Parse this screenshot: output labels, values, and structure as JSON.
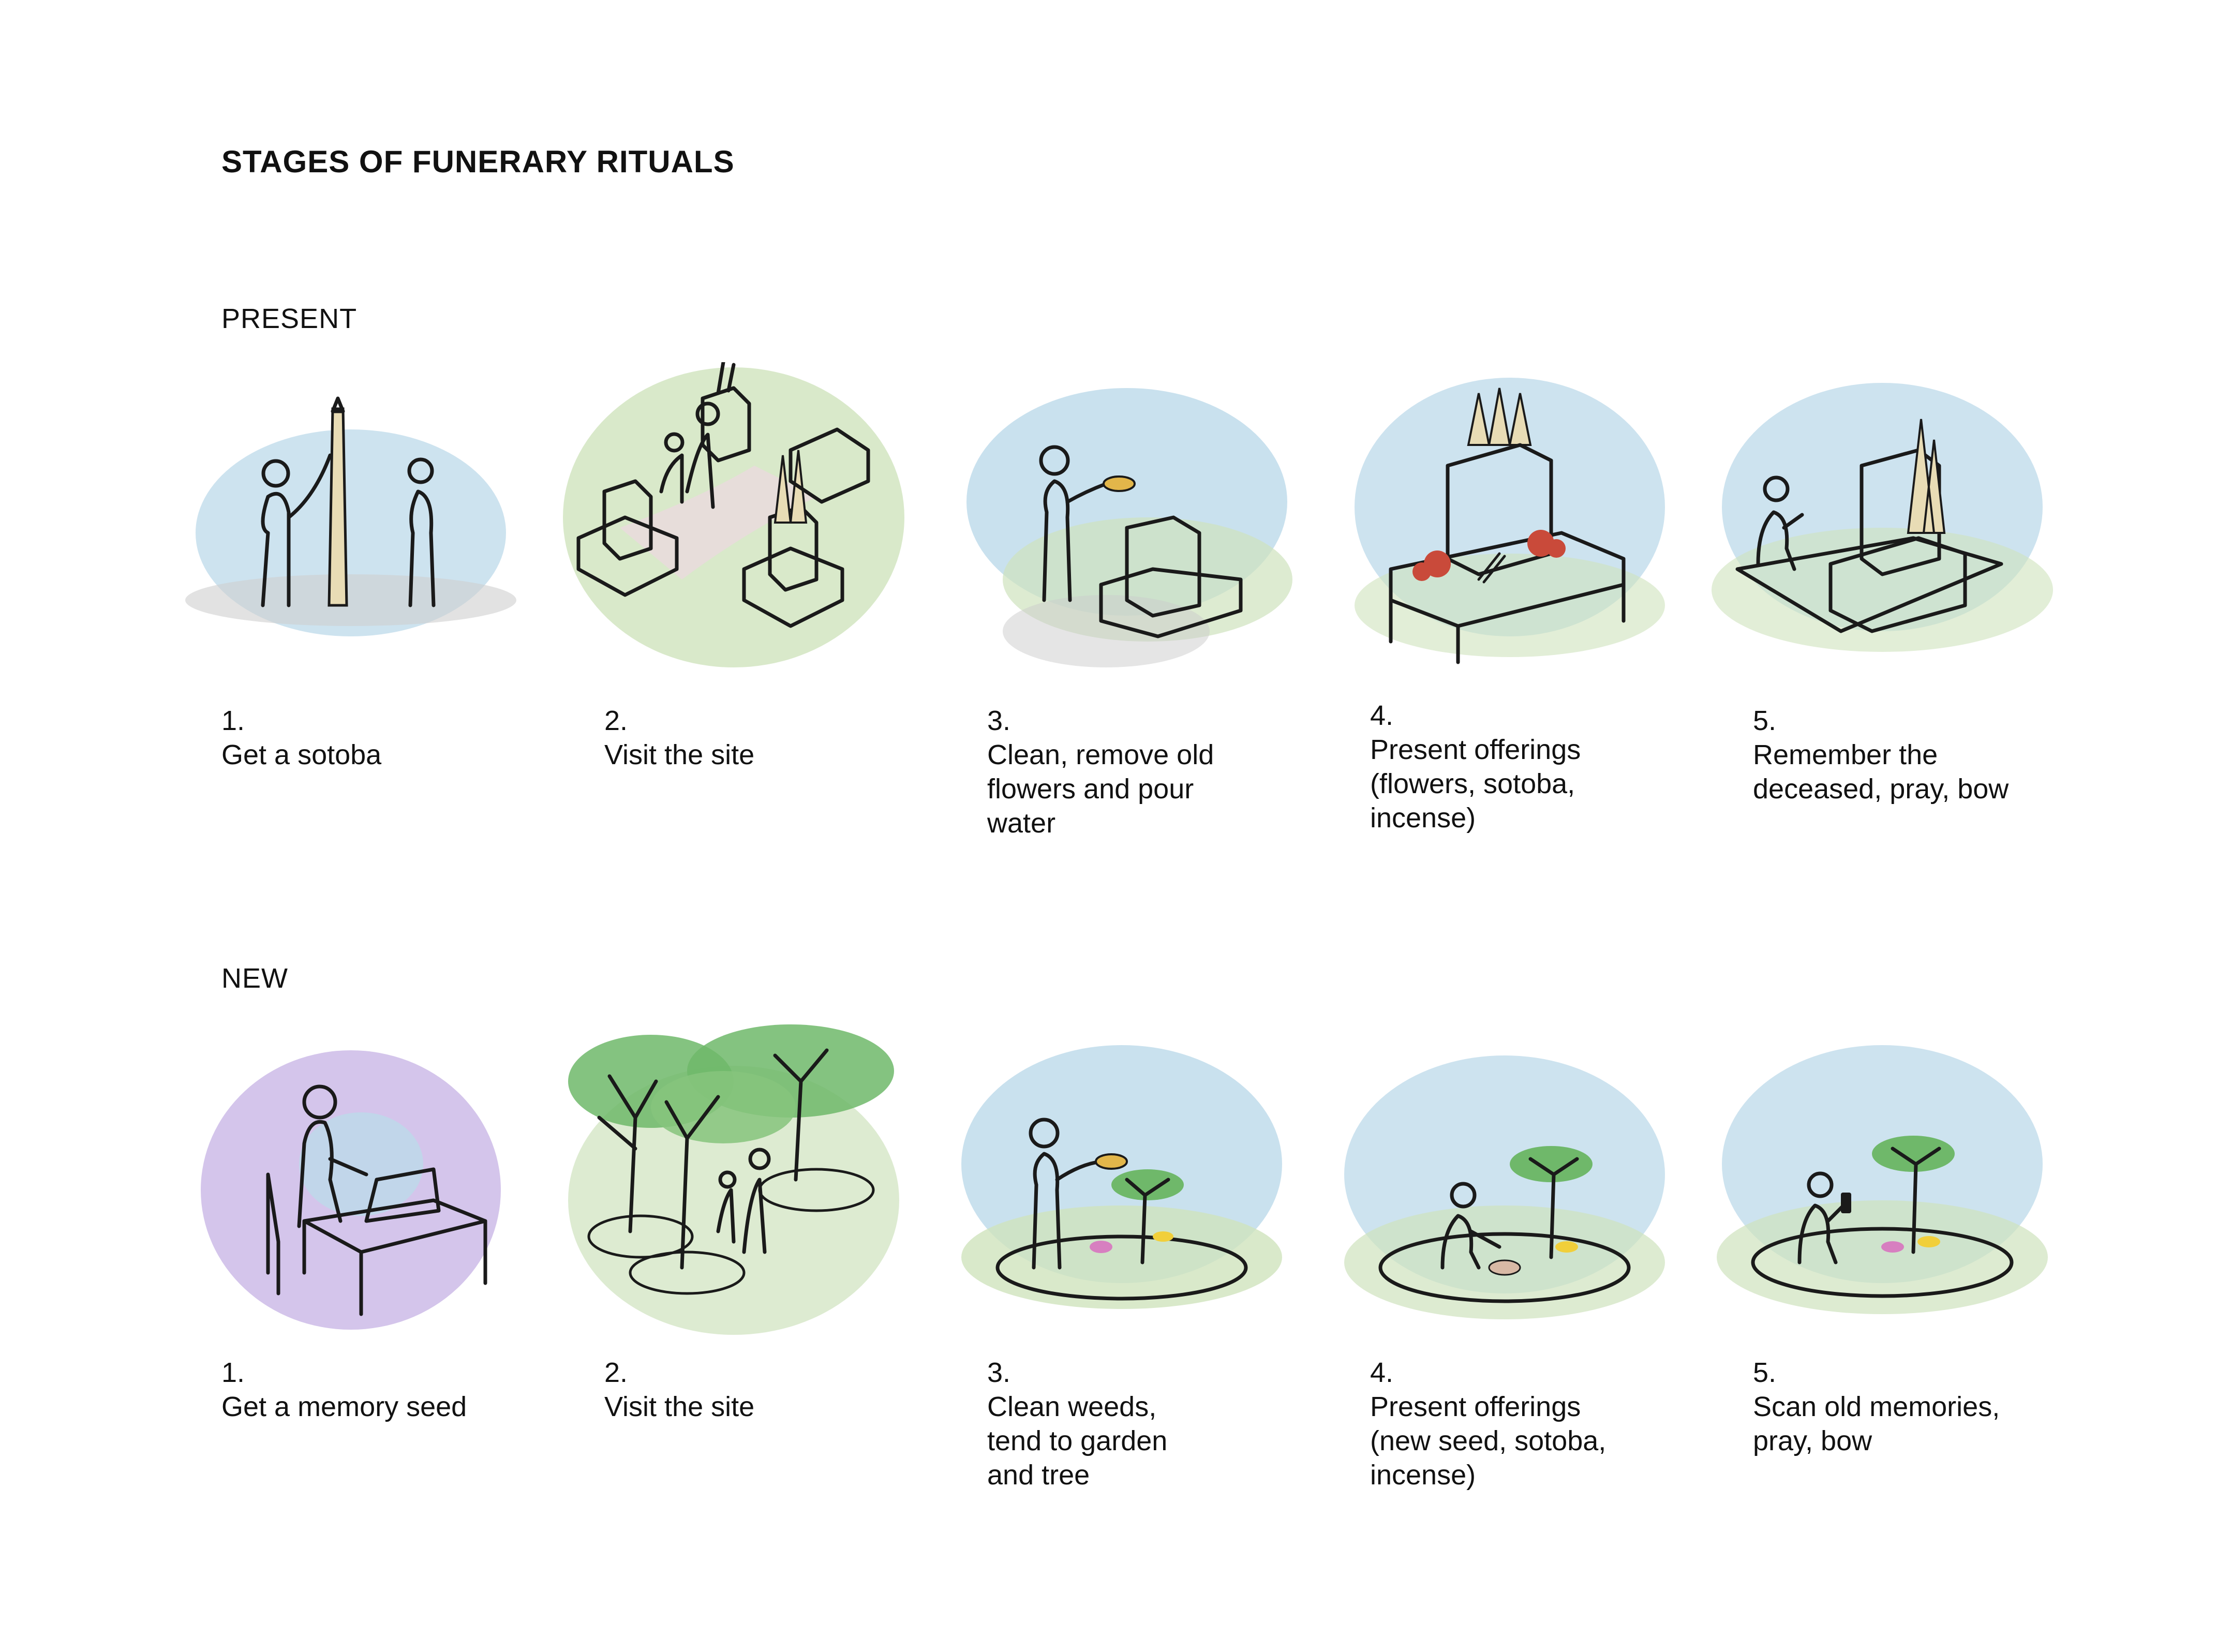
{
  "title": "STAGES OF FUNERARY RITUALS",
  "sections": [
    {
      "label": "PRESENT",
      "stages": [
        {
          "num": "1.",
          "text": "Get a sotoba",
          "icon": "sotoba-people-illustration"
        },
        {
          "num": "2.",
          "text": "Visit the site",
          "icon": "graves-visit-illustration"
        },
        {
          "num": "3.",
          "text": "Clean, remove old\nflowers and pour\nwater",
          "icon": "pour-water-illustration"
        },
        {
          "num": "4.",
          "text": "Present offerings\n(flowers, sotoba,\nincense)",
          "icon": "offerings-grave-illustration"
        },
        {
          "num": "5.",
          "text": "Remember the\ndeceased, pray, bow",
          "icon": "pray-grave-illustration"
        }
      ]
    },
    {
      "label": "NEW",
      "stages": [
        {
          "num": "1.",
          "text": "Get a memory seed",
          "icon": "desk-seed-illustration"
        },
        {
          "num": "2.",
          "text": "Visit the site",
          "icon": "tree-grove-illustration"
        },
        {
          "num": "3.",
          "text": "Clean weeds,\ntend to garden\nand tree",
          "icon": "tend-tree-illustration"
        },
        {
          "num": "4.",
          "text": "Present offerings\n(new seed, sotoba,\nincense)",
          "icon": "plant-seed-illustration"
        },
        {
          "num": "5.",
          "text": "Scan old memories,\npray, bow",
          "icon": "scan-memories-illustration"
        }
      ]
    }
  ],
  "colors": {
    "sky": "#bcd9ea",
    "grass": "#cfe3bd",
    "stone": "#9a9a9a",
    "sotoba": "#e8dcb5",
    "tree": "#6fb86a",
    "purple": "#c9b7e6",
    "flower": "#c94a3a",
    "mushroom_pink": "#d77fc0",
    "mushroom_yellow": "#f1cf3a"
  }
}
